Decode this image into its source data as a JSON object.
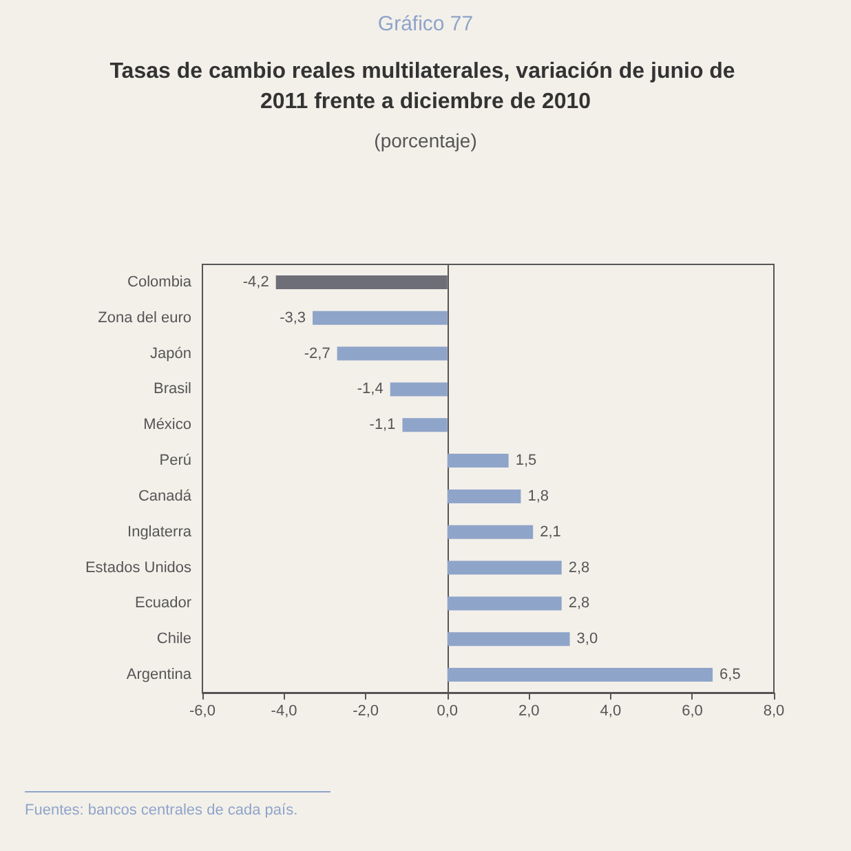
{
  "chart_data": {
    "type": "bar",
    "orientation": "horizontal",
    "title": "Tasas de cambio reales multilaterales, variación de junio de 2011 frente a diciembre de 2010",
    "subtitle": "(porcentaje)",
    "annotations": [
      "Gráfico 77",
      "Fuentes: bancos centrales de cada país."
    ],
    "categories": [
      "Colombia",
      "Zona del euro",
      "Japón",
      "Brasil",
      "México",
      "Perú",
      "Canadá",
      "Inglaterra",
      "Estados Unidos",
      "Ecuador",
      "Chile",
      "Argentina"
    ],
    "values": [
      -4.2,
      -3.3,
      -2.7,
      -1.4,
      -1.1,
      1.5,
      1.8,
      2.1,
      2.8,
      2.8,
      3.0,
      6.5
    ],
    "value_labels": [
      "-4,2",
      "-3,3",
      "-2,7",
      "-1,4",
      "-1,1",
      "1,5",
      "1,8",
      "2,1",
      "2,8",
      "2,8",
      "3,0",
      "6,5"
    ],
    "colors": [
      "#6e6e78",
      "#8fa4c9",
      "#8fa4c9",
      "#8fa4c9",
      "#8fa4c9",
      "#8fa4c9",
      "#8fa4c9",
      "#8fa4c9",
      "#8fa4c9",
      "#8fa4c9",
      "#8fa4c9",
      "#8fa4c9"
    ],
    "xlim": [
      -6,
      8
    ],
    "xticks": [
      {
        "value": -6,
        "label": "-6,0"
      },
      {
        "value": -4,
        "label": "-4,0"
      },
      {
        "value": -2,
        "label": "-2,0"
      },
      {
        "value": 0,
        "label": "0,0"
      },
      {
        "value": 2,
        "label": "2,0"
      },
      {
        "value": 4,
        "label": "4,0"
      },
      {
        "value": 6,
        "label": "6,0"
      },
      {
        "value": 8,
        "label": "8,0"
      }
    ]
  }
}
